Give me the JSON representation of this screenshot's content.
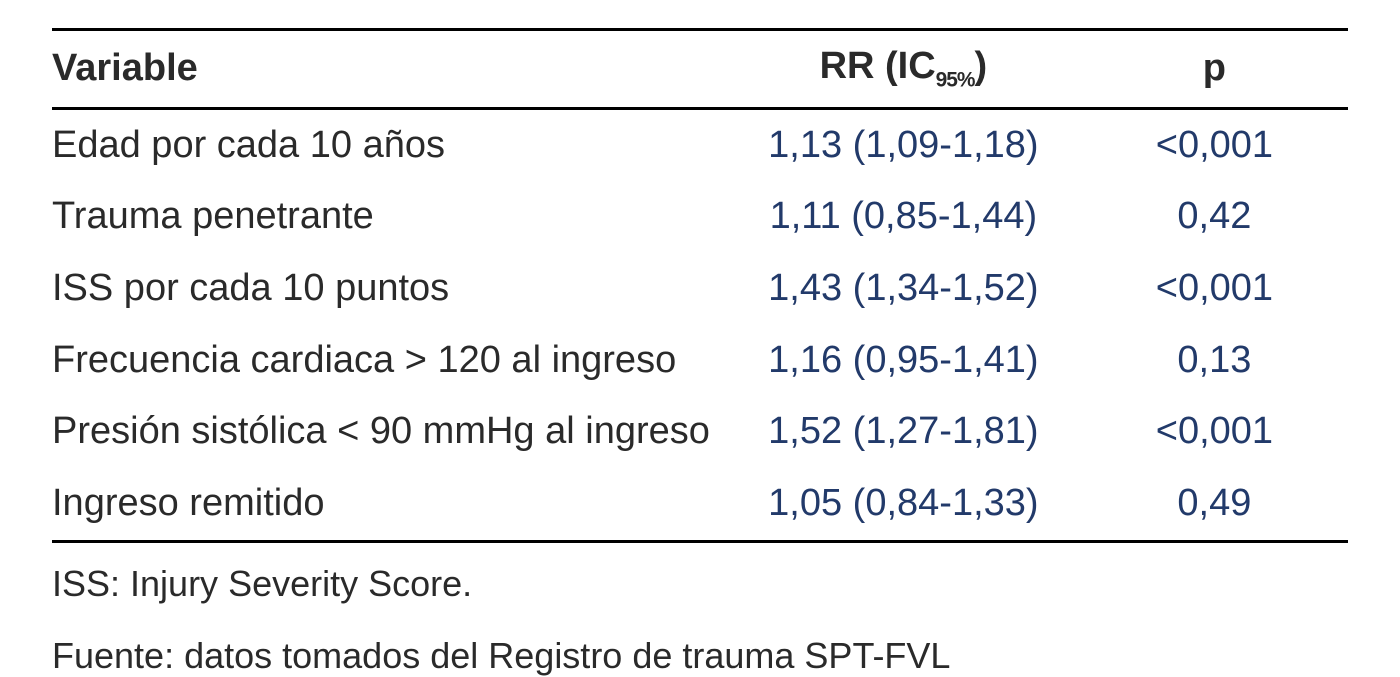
{
  "table": {
    "columns": {
      "variable": "Variable",
      "rr_prefix": "RR (IC",
      "rr_sub": "95%",
      "rr_suffix": ")",
      "p": "p"
    },
    "rows": [
      {
        "variable": "Edad por cada 10 años",
        "rr": "1,13 (1,09-1,18)",
        "p": "<0,001"
      },
      {
        "variable": "Trauma penetrante",
        "rr": "1,11 (0,85-1,44)",
        "p": "0,42"
      },
      {
        "variable": "ISS por cada 10 puntos",
        "rr": "1,43 (1,34-1,52)",
        "p": "<0,001"
      },
      {
        "variable": "Frecuencia cardiaca > 120 al ingreso",
        "rr": "1,16 (0,95-1,41)",
        "p": "0,13"
      },
      {
        "variable": "Presión sistólica < 90 mmHg al ingreso",
        "rr": "1,52 (1,27-1,81)",
        "p": "<0,001"
      },
      {
        "variable": "Ingreso remitido",
        "rr": "1,05 (0,84-1,33)",
        "p": "0,49"
      }
    ],
    "value_color": "#223a6a",
    "border_color": "#000000",
    "background_color": "#ffffff",
    "font_size_pt": 38
  },
  "footnotes": {
    "abbr": "ISS: Injury Severity Score.",
    "source": "Fuente: datos tomados del Registro de trauma SPT-FVL"
  }
}
